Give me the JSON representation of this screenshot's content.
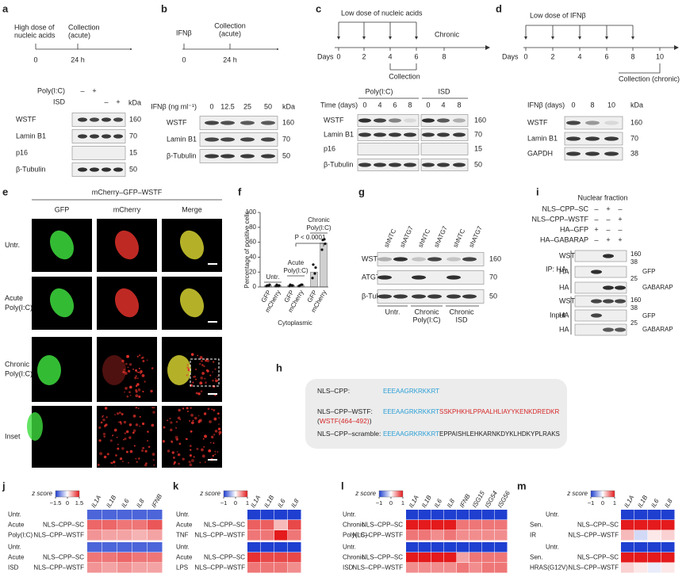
{
  "figure": {
    "a": {
      "letter": "a",
      "timeline": {
        "start": [
          "High dose of",
          "nucleic acids"
        ],
        "collection": [
          "Collection",
          "(acute)"
        ],
        "ticks": [
          "0",
          "24 h"
        ]
      },
      "blot": {
        "treatments": [
          {
            "name": "Poly(I:C)",
            "signs": [
              "–",
              "+",
              null,
              null
            ]
          },
          {
            "name": "ISD",
            "signs": [
              null,
              null,
              "–",
              "+"
            ]
          }
        ],
        "kda": "kDa",
        "rows": [
          "WSTF",
          "Lamin B1",
          "p16",
          "β-Tubulin"
        ],
        "markers": [
          "160",
          "70",
          "15",
          "50"
        ]
      }
    },
    "b": {
      "letter": "b",
      "timeline": {
        "start": [
          "IFNβ"
        ],
        "collection": [
          "Collection",
          "(acute)"
        ],
        "ticks": [
          "0",
          "24 h"
        ]
      },
      "blot": {
        "header": "IFNβ (ng ml⁻¹)",
        "lanes": [
          "0",
          "12.5",
          "25",
          "50"
        ],
        "kda": "kDa",
        "rows": [
          "WSTF",
          "Lamin B1",
          "β-Tubulin"
        ],
        "markers": [
          "160",
          "70",
          "50"
        ]
      }
    },
    "c": {
      "letter": "c",
      "timeline": {
        "title": "Low dose of nucleic acids",
        "end": "Chronic",
        "axis": "Days",
        "ticks": [
          "0",
          "2",
          "4",
          "6",
          "8"
        ],
        "collection": "Collection"
      },
      "blot": {
        "groups": [
          "Poly(I:C)",
          "ISD"
        ],
        "header": "Time (days)",
        "lanes": [
          "0",
          "4",
          "6",
          "8",
          "0",
          "4",
          "8"
        ],
        "rows": [
          "WSTF",
          "Lamin B1",
          "p16",
          "β-Tubulin"
        ],
        "markers": [
          "160",
          "70",
          "15",
          "50"
        ]
      }
    },
    "d": {
      "letter": "d",
      "timeline": {
        "title": "Low dose of IFNβ",
        "axis": "Days",
        "ticks": [
          "0",
          "2",
          "4",
          "6",
          "8",
          "10"
        ],
        "collection": "Collection (chronic)"
      },
      "blot": {
        "header": "IFNβ (days)",
        "lanes": [
          "0",
          "8",
          "10"
        ],
        "kda": "kDa",
        "rows": [
          "WSTF",
          "Lamin B1",
          "GAPDH"
        ],
        "markers": [
          "160",
          "70",
          "38"
        ]
      }
    },
    "e": {
      "letter": "e",
      "title": "mCherry–GFP–WSTF",
      "columns": [
        "GFP",
        "mCherry",
        "Merge"
      ],
      "rows": [
        [
          "Untr."
        ],
        [
          "Acute",
          "Poly(I:C)"
        ],
        [
          "Chronic",
          "Poly(I:C)"
        ],
        [
          "Inset"
        ]
      ]
    },
    "f": {
      "letter": "f",
      "chart_data": {
        "type": "bar",
        "ylabel": "Percentage of positive cells",
        "xlabel": "Cytoplasmic",
        "categories": [
          "GFP",
          "mCherry",
          "GFP",
          "mCherry",
          "GFP",
          "mCherry"
        ],
        "groups": [
          [
            "Untr."
          ],
          [
            "Acute",
            "Poly(I:C)"
          ],
          [
            "Chronic",
            "Poly(I:C)"
          ]
        ],
        "values": [
          2,
          2,
          2,
          2,
          20,
          59
        ],
        "points": [
          [
            1,
            3,
            2,
            2
          ],
          [
            1,
            2,
            3,
            1
          ],
          [
            1,
            2,
            3,
            2
          ],
          [
            1,
            3,
            2,
            3
          ],
          [
            12,
            26,
            30,
            18
          ],
          [
            50,
            58,
            63,
            64
          ]
        ],
        "color": "#d0d0d0",
        "ylim": [
          0,
          100
        ],
        "yticks": [
          0,
          20,
          40,
          60,
          80,
          100
        ],
        "annotation": "P < 0.0001"
      }
    },
    "g": {
      "letter": "g",
      "lanes": [
        "shNTC",
        "shATG7",
        "shNTC",
        "shATG7",
        "shNTC",
        "shATG7"
      ],
      "rows": [
        "WSTF",
        "ATG7",
        "β-Tubulin"
      ],
      "markers": [
        "160",
        "70",
        "50"
      ],
      "groups": [
        [
          "Untr."
        ],
        [
          "Chronic",
          "Poly(I:C)"
        ],
        [
          "Chronic",
          "ISD"
        ]
      ]
    },
    "h": {
      "letter": "h",
      "rows": [
        {
          "name": [
            [
              {
                "text": "NLS–CPP:",
                "color": "#222222"
              }
            ]
          ],
          "sequence": [
            {
              "text": "EEEAAGRKRKKRT",
              "color": "#2a9fd6"
            }
          ]
        },
        {
          "name": [
            [
              {
                "text": "NLS–CPP–WSTF:",
                "color": "#222222"
              }
            ],
            [
              {
                "text": "(",
                "color": "#222222"
              },
              {
                "text": "WSTF(464–492)",
                "color": "#d62728"
              },
              {
                "text": ")",
                "color": "#222222"
              }
            ]
          ],
          "sequence": [
            {
              "text": "EEEAAGRKRKKRT",
              "color": "#2a9fd6"
            },
            {
              "text": "SSKPHKHLPPAALHLIAYYKENKDREDKR",
              "color": "#d62728"
            }
          ]
        },
        {
          "name": [
            [
              {
                "text": "NLS–CPP–scramble:",
                "color": "#222222"
              }
            ]
          ],
          "sequence": [
            {
              "text": "EEEAAGRKRKKRT",
              "color": "#2a9fd6"
            },
            {
              "text": "EPPAISHLEHKARNKDYKLHDKYPLRAKS",
              "color": "#222222"
            }
          ]
        }
      ]
    },
    "i": {
      "letter": "i",
      "title": "Nuclear fraction",
      "treatments": [
        {
          "name": "NLS–CPP–SC",
          "signs": [
            "–",
            "+",
            "–"
          ]
        },
        {
          "name": "NLS–CPP–WSTF",
          "signs": [
            "–",
            "–",
            "+"
          ]
        },
        {
          "name": "HA–GFP",
          "signs": [
            "+",
            "–",
            "–"
          ]
        },
        {
          "name": "HA–GABARAP",
          "signs": [
            "–",
            "+",
            "+"
          ]
        }
      ],
      "sections": [
        {
          "label": "IP: HA",
          "rows": [
            "WSTF",
            "HA",
            "HA"
          ],
          "markers": [
            "160",
            "38",
            "GFP",
            "25",
            "GABARAP"
          ]
        },
        {
          "label": "Input",
          "rows": [
            "WSTF",
            "HA",
            "HA"
          ],
          "markers": [
            "160",
            "38",
            "GFP",
            "25",
            "GABARAP"
          ]
        }
      ]
    },
    "j": {
      "letter": "j",
      "scale_title": "z score",
      "zlim": [
        -1.5,
        1.5
      ],
      "zticks": [
        {
          "value": -1.5,
          "label": "−1.5"
        },
        0,
        1.5
      ],
      "genes": [
        "IL1A",
        "IL1B",
        "IL6",
        "IL8",
        "IFNB"
      ],
      "blocks": [
        {
          "group": [
            "Acute",
            "Poly(I:C)"
          ],
          "rows": [
            "Untr.",
            "NLS–CPP–SC",
            "NLS–CPP–WSTF"
          ],
          "values": [
            [
              -1.2,
              -1.2,
              -1.2,
              -1.2,
              -1.2
            ],
            [
              1.0,
              1.0,
              0.9,
              0.9,
              1.1
            ],
            [
              0.7,
              0.6,
              0.6,
              0.5,
              0.6
            ]
          ]
        },
        {
          "group": [
            "Acute",
            "ISD"
          ],
          "rows": [
            "Untr.",
            "NLS–CPP–SC",
            "NLS–CPP–WSTF"
          ],
          "values": [
            [
              -1.2,
              -1.2,
              -1.2,
              -1.2,
              -1.2
            ],
            [
              0.9,
              0.9,
              1.0,
              0.9,
              0.9
            ],
            [
              0.7,
              0.6,
              0.7,
              0.6,
              0.6
            ]
          ]
        }
      ]
    },
    "k": {
      "letter": "k",
      "scale_title": "z score",
      "zlim": [
        -1,
        1
      ],
      "zticks": [
        {
          "value": -1,
          "label": "−1"
        },
        0,
        1
      ],
      "genes": [
        "IL1A",
        "IL1B",
        "IL6",
        "IL8"
      ],
      "blocks": [
        {
          "group": [
            "Acute",
            "TNF"
          ],
          "rows": [
            "Untr.",
            "NLS–CPP–SC",
            "NLS–CPP–WSTF"
          ],
          "values": [
            [
              -1,
              -1,
              -1,
              -1
            ],
            [
              0.7,
              0.7,
              0.3,
              0.8
            ],
            [
              0.6,
              0.6,
              1.0,
              0.6
            ]
          ]
        },
        {
          "group": [
            "Acute",
            "LPS"
          ],
          "rows": [
            "Untr.",
            "NLS–CPP–SC",
            "NLS–CPP–WSTF"
          ],
          "values": [
            [
              -1,
              -1,
              -1,
              -1
            ],
            [
              0.9,
              0.8,
              0.8,
              0.8
            ],
            [
              0.6,
              0.6,
              0.6,
              0.5
            ]
          ]
        }
      ]
    },
    "l": {
      "letter": "l",
      "scale_title": "z score",
      "zlim": [
        -1,
        1
      ],
      "zticks": [
        {
          "value": -1,
          "label": "−1"
        },
        0,
        1
      ],
      "genes": [
        "IL1A",
        "IL1B",
        "IL6",
        "IL8",
        "IFNB",
        "ISG15",
        "ISG54",
        "ISG56"
      ],
      "blocks": [
        {
          "group": [
            "Chronic",
            "Poly(I:C)"
          ],
          "rows": [
            "Untr.",
            "NLS–CPP–SC",
            "NLS–CPP–WSTF"
          ],
          "values": [
            [
              -1,
              -1,
              -1,
              -1,
              -1,
              -1,
              -1,
              -1
            ],
            [
              1,
              1,
              1,
              1,
              0.6,
              0.6,
              0.6,
              0.6
            ],
            [
              0.6,
              0.6,
              0.5,
              0.6,
              0.5,
              0.5,
              0.5,
              0.5
            ]
          ]
        },
        {
          "group": [
            "Chronic",
            "ISD"
          ],
          "rows": [
            "Untr.",
            "NLS–CPP–SC",
            "NLS–CPP–WSTF"
          ],
          "values": [
            [
              -1,
              -1,
              -1,
              -1,
              -1,
              -1,
              -1,
              -1
            ],
            [
              1,
              1,
              1,
              1,
              0.4,
              0.6,
              0.6,
              0.6
            ],
            [
              0.5,
              0.5,
              0.5,
              0.5,
              0.6,
              0.5,
              0.6,
              0.6
            ]
          ]
        }
      ]
    },
    "m": {
      "letter": "m",
      "scale_title": "z score",
      "zlim": [
        -1,
        1
      ],
      "zticks": [
        {
          "value": -1,
          "label": "−1"
        },
        0,
        1
      ],
      "genes": [
        "IL1A",
        "IL1B",
        "IL6",
        "IL8"
      ],
      "blocks": [
        {
          "group": [
            "Sen.",
            "IR"
          ],
          "rows": [
            "Untr.",
            "NLS–CPP–SC",
            "NLS–CPP–WSTF"
          ],
          "values": [
            [
              -1,
              -1,
              -1,
              -1
            ],
            [
              1,
              1,
              1,
              1
            ],
            [
              0.3,
              -0.2,
              0.1,
              0.2
            ]
          ]
        },
        {
          "group": [
            "Sen.",
            "HRAS(G12V)"
          ],
          "rows": [
            "Untr.",
            "NLS–CPP–SC",
            "NLS–CPP–WSTF"
          ],
          "values": [
            [
              -1,
              -1,
              -1,
              -1
            ],
            [
              1,
              1,
              1,
              1
            ],
            [
              0.2,
              0.1,
              -0.1,
              0.1
            ]
          ]
        }
      ]
    }
  }
}
